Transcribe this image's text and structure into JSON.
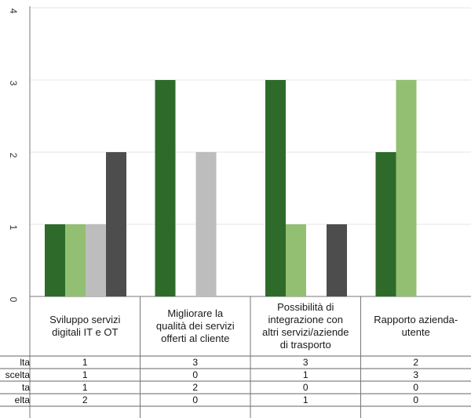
{
  "chart_data": {
    "type": "bar",
    "categories": [
      [
        "Sviluppo servizi",
        "digitali IT e OT"
      ],
      [
        "Migliorare la",
        "qualità dei servizi",
        "offerti al cliente"
      ],
      [
        "Possibilità di",
        "integrazione con",
        "altri servizi/aziende",
        "di trasporto"
      ],
      [
        "Rapporto azienda-",
        "utente"
      ]
    ],
    "series": [
      {
        "name": "lta",
        "color": "#2e6b2a",
        "values": [
          1,
          3,
          3,
          2
        ]
      },
      {
        "name": "scelta",
        "color": "#93bf72",
        "values": [
          1,
          0,
          1,
          3
        ]
      },
      {
        "name": "ta",
        "color": "#bdbdbd",
        "values": [
          1,
          2,
          0,
          0
        ]
      },
      {
        "name": "elta",
        "color": "#4d4d4d",
        "values": [
          2,
          0,
          1,
          0
        ]
      }
    ],
    "y_ticks": [
      "0",
      "1",
      "2",
      "3",
      "4"
    ],
    "ylim": [
      0,
      4
    ],
    "grid": true,
    "legend": "data-table-below"
  }
}
